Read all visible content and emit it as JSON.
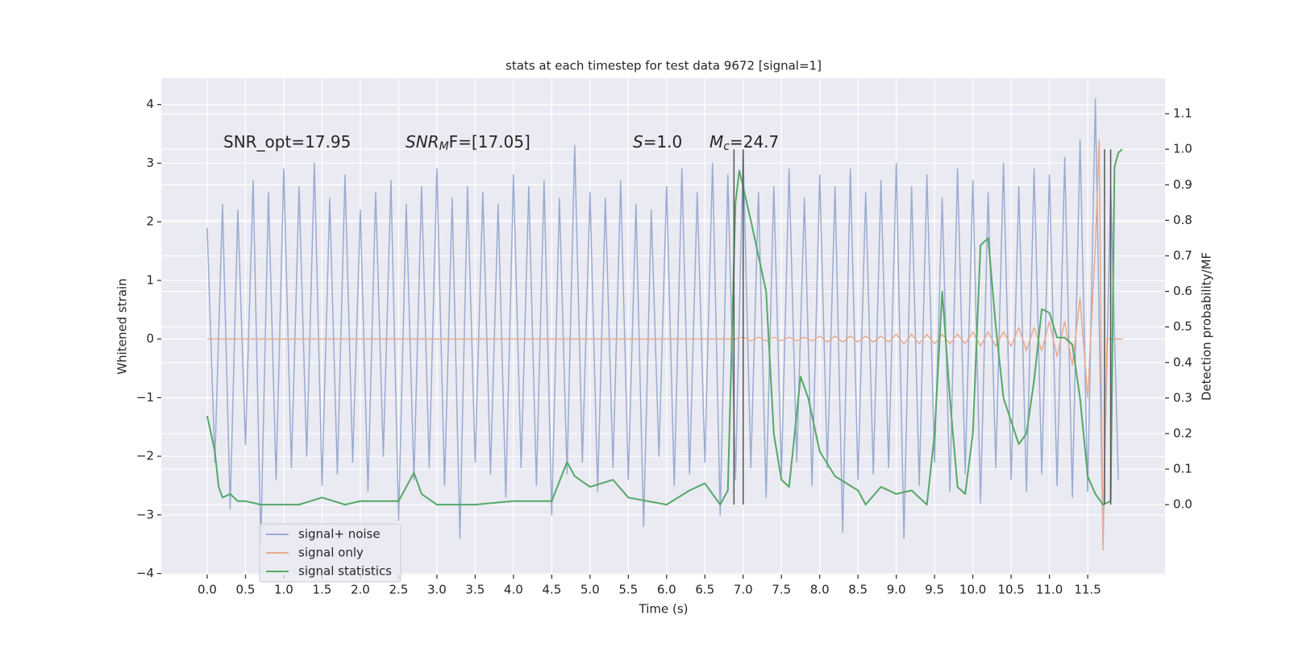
{
  "chart_data": {
    "type": "line",
    "title": "stats at each timestep for test data 9672 [signal=1]",
    "x_label": "Time (s)",
    "y_label": "Whitened strain",
    "y2_label": "Detection probability/MF",
    "annotations": [
      [
        "SNR_opt=17.95"
      ],
      [
        "SNR",
        "M",
        "F=[17.05]"
      ],
      [
        "S",
        "=1.0"
      ],
      [
        "M",
        "c",
        "=24.7"
      ]
    ],
    "xlim": [
      -0.6,
      12.51
    ],
    "ylim": [
      -4.02,
      4.45
    ],
    "y2lim": [
      -0.197,
      1.2
    ],
    "xticks": [
      {
        "value": 0,
        "label": "0.0"
      },
      0.5,
      {
        "value": 1,
        "label": "1.0"
      },
      1.5,
      {
        "value": 2,
        "label": "2.0"
      },
      2.5,
      {
        "value": 3,
        "label": "3.0"
      },
      3.5,
      {
        "value": 4,
        "label": "4.0"
      },
      4.5,
      {
        "value": 5,
        "label": "5.0"
      },
      5.5,
      {
        "value": 6,
        "label": "6.0"
      },
      6.5,
      {
        "value": 7,
        "label": "7.0"
      },
      7.5,
      {
        "value": 8,
        "label": "8.0"
      },
      8.5,
      {
        "value": 9,
        "label": "9.0"
      },
      9.5,
      {
        "value": 10,
        "label": "10.0"
      },
      10.5,
      {
        "value": 11,
        "label": "11.0"
      },
      11.5
    ],
    "yticks": [
      {
        "value": -4,
        "label": "−4"
      },
      {
        "value": -3,
        "label": "−3"
      },
      {
        "value": -2,
        "label": "−2"
      },
      {
        "value": -1,
        "label": "−1"
      },
      0,
      1,
      2,
      3,
      4
    ],
    "y2ticks": [
      {
        "value": 0,
        "label": "0.0"
      },
      0.1,
      0.2,
      0.3,
      0.4,
      0.5,
      0.6,
      0.7,
      0.8,
      0.9,
      {
        "value": 1,
        "label": "1.0"
      },
      1.1
    ],
    "grid": true,
    "legend": "lower left",
    "vlines": [
      6.88,
      7.0,
      11.72,
      11.8
    ],
    "vline_span": [
      0,
      1
    ],
    "vline_color": "#555555",
    "series": [
      {
        "name": "signal+ noise",
        "color": "#9aabd0",
        "x": [
          0.0,
          0.1,
          0.2,
          0.3,
          0.4,
          0.5,
          0.6,
          0.7,
          0.8,
          0.9,
          1.0,
          1.1,
          1.2,
          1.3,
          1.4,
          1.5,
          1.6,
          1.7,
          1.8,
          1.9,
          2.0,
          2.1,
          2.2,
          2.3,
          2.4,
          2.5,
          2.6,
          2.7,
          2.8,
          2.9,
          3.0,
          3.1,
          3.2,
          3.3,
          3.4,
          3.5,
          3.6,
          3.7,
          3.8,
          3.9,
          4.0,
          4.1,
          4.2,
          4.3,
          4.4,
          4.5,
          4.6,
          4.7,
          4.8,
          4.9,
          5.0,
          5.1,
          5.2,
          5.3,
          5.4,
          5.5,
          5.6,
          5.7,
          5.8,
          5.9,
          6.0,
          6.1,
          6.2,
          6.3,
          6.4,
          6.5,
          6.6,
          6.7,
          6.8,
          6.9,
          7.0,
          7.1,
          7.2,
          7.3,
          7.4,
          7.5,
          7.6,
          7.7,
          7.8,
          7.9,
          8.0,
          8.1,
          8.2,
          8.3,
          8.4,
          8.5,
          8.6,
          8.7,
          8.8,
          8.9,
          9.0,
          9.1,
          9.2,
          9.3,
          9.4,
          9.5,
          9.6,
          9.7,
          9.8,
          9.9,
          10.0,
          10.1,
          10.2,
          10.3,
          10.4,
          10.5,
          10.6,
          10.7,
          10.8,
          10.9,
          11.0,
          11.1,
          11.2,
          11.3,
          11.4,
          11.5,
          11.6,
          11.7,
          11.8,
          11.9
        ],
        "values": [
          1.9,
          -2.1,
          2.3,
          -2.9,
          2.2,
          -1.8,
          2.7,
          -3.5,
          2.5,
          -2.4,
          2.9,
          -2.2,
          2.6,
          -2.0,
          3.0,
          -2.5,
          2.4,
          -2.3,
          2.8,
          -2.1,
          2.2,
          -2.6,
          2.5,
          -2.0,
          2.7,
          -3.1,
          2.3,
          -2.4,
          2.6,
          -2.2,
          2.9,
          -2.5,
          2.4,
          -3.4,
          2.6,
          -2.1,
          2.5,
          -2.3,
          2.3,
          -2.7,
          2.8,
          -2.2,
          2.6,
          -2.5,
          2.7,
          -3.0,
          2.4,
          -2.3,
          3.3,
          -2.1,
          2.5,
          -2.6,
          2.4,
          -2.2,
          2.7,
          -2.4,
          2.3,
          -3.2,
          2.2,
          -2.0,
          2.6,
          -2.5,
          2.9,
          -2.3,
          2.5,
          -2.1,
          3.0,
          -3.0,
          2.8,
          -2.4,
          3.2,
          -2.2,
          2.5,
          -2.7,
          2.6,
          -2.3,
          2.9,
          -2.1,
          2.4,
          -2.5,
          2.8,
          -2.2,
          2.6,
          -3.3,
          2.9,
          -2.4,
          2.5,
          -2.3,
          2.7,
          -2.2,
          3.0,
          -3.4,
          2.6,
          -2.5,
          2.8,
          -2.1,
          2.4,
          -2.6,
          2.9,
          -2.3,
          2.7,
          -2.8,
          2.5,
          -2.2,
          3.0,
          -2.4,
          2.6,
          -2.6,
          2.9,
          -2.3,
          2.8,
          -2.5,
          3.1,
          -2.7,
          3.4,
          -2.6,
          4.1,
          -3.5,
          2.6,
          -2.4
        ]
      },
      {
        "name": "signal only",
        "color": "#e8ab8c",
        "x": [
          0,
          6.9,
          7.0,
          7.1,
          7.2,
          7.3,
          7.4,
          7.5,
          7.6,
          7.7,
          7.8,
          7.9,
          8.0,
          8.1,
          8.2,
          8.3,
          8.4,
          8.5,
          8.6,
          8.7,
          8.8,
          8.9,
          9.0,
          9.1,
          9.2,
          9.3,
          9.4,
          9.5,
          9.6,
          9.7,
          9.8,
          9.9,
          10.0,
          10.1,
          10.2,
          10.3,
          10.4,
          10.5,
          10.6,
          10.7,
          10.8,
          10.9,
          11.0,
          11.1,
          11.2,
          11.3,
          11.4,
          11.5,
          11.6,
          11.65,
          11.7,
          11.75,
          11.96
        ],
        "values": [
          0,
          0,
          0.03,
          -0.03,
          0.03,
          -0.03,
          0.03,
          -0.03,
          0.03,
          -0.03,
          0.03,
          -0.03,
          0.05,
          -0.05,
          0.05,
          -0.05,
          0.05,
          -0.05,
          0.05,
          -0.05,
          0.05,
          -0.05,
          0.08,
          -0.08,
          0.08,
          -0.08,
          0.08,
          -0.08,
          0.08,
          -0.08,
          0.08,
          -0.08,
          0.12,
          -0.12,
          0.12,
          -0.12,
          0.12,
          -0.12,
          0.2,
          -0.2,
          0.2,
          -0.2,
          0.3,
          -0.3,
          0.3,
          -0.45,
          0.7,
          -1.0,
          1.6,
          3.4,
          -3.6,
          0,
          0
        ]
      },
      {
        "name": "signal statistics",
        "color": "#55a868",
        "axis": "y2",
        "x": [
          0.0,
          0.1,
          0.15,
          0.2,
          0.3,
          0.4,
          0.5,
          0.7,
          1.0,
          1.2,
          1.5,
          1.8,
          2.0,
          2.5,
          2.6,
          2.7,
          2.8,
          3.0,
          3.5,
          4.0,
          4.5,
          4.7,
          4.8,
          5.0,
          5.3,
          5.5,
          6.0,
          6.3,
          6.5,
          6.7,
          6.8,
          6.9,
          6.95,
          7.1,
          7.2,
          7.3,
          7.4,
          7.5,
          7.6,
          7.75,
          7.85,
          8.0,
          8.2,
          8.5,
          8.6,
          8.8,
          9.0,
          9.2,
          9.4,
          9.5,
          9.6,
          9.7,
          9.8,
          9.9,
          10.0,
          10.1,
          10.2,
          10.3,
          10.4,
          10.6,
          10.7,
          10.8,
          10.9,
          11.0,
          11.1,
          11.2,
          11.3,
          11.4,
          11.5,
          11.6,
          11.7,
          11.8,
          11.85,
          11.9,
          11.95
        ],
        "values": [
          0.25,
          0.15,
          0.05,
          0.02,
          0.03,
          0.01,
          0.01,
          0.0,
          0.0,
          0.0,
          0.02,
          0.0,
          0.01,
          0.01,
          0.05,
          0.09,
          0.03,
          0.0,
          0.0,
          0.01,
          0.01,
          0.12,
          0.08,
          0.05,
          0.07,
          0.02,
          0.0,
          0.04,
          0.06,
          0.0,
          0.04,
          0.85,
          0.94,
          0.8,
          0.7,
          0.6,
          0.2,
          0.07,
          0.05,
          0.36,
          0.3,
          0.15,
          0.08,
          0.04,
          0.0,
          0.05,
          0.03,
          0.04,
          0.0,
          0.2,
          0.6,
          0.3,
          0.05,
          0.03,
          0.2,
          0.73,
          0.75,
          0.5,
          0.3,
          0.17,
          0.2,
          0.35,
          0.55,
          0.54,
          0.47,
          0.47,
          0.45,
          0.3,
          0.08,
          0.03,
          0.0,
          0.01,
          0.95,
          0.99,
          1.0
        ]
      }
    ]
  }
}
